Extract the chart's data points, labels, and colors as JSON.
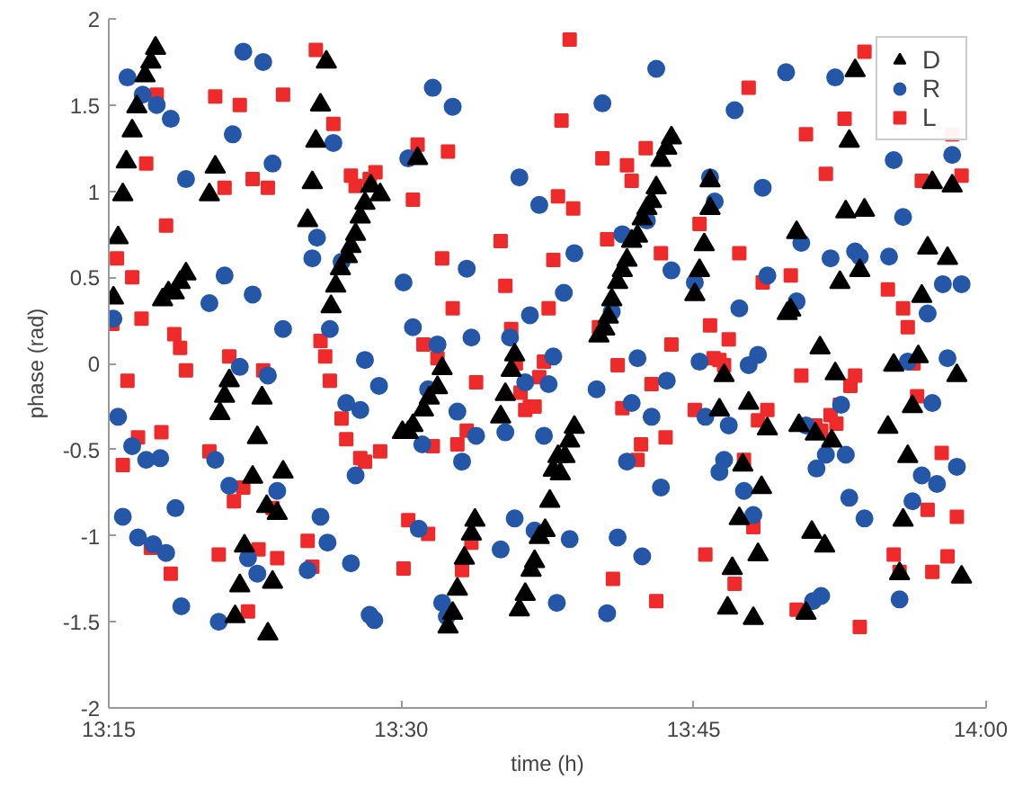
{
  "chart_data": {
    "type": "scatter",
    "xlabel": "time (h)",
    "ylabel": "phase (rad)",
    "xlim": [
      13.25,
      14.0
    ],
    "ylim": [
      -2,
      2
    ],
    "xticks": [
      {
        "value": 13.25,
        "label": "13:15"
      },
      {
        "value": 13.5,
        "label": "13:30"
      },
      {
        "value": 13.75,
        "label": "13:45"
      },
      {
        "value": 14.0,
        "label": "14:00"
      }
    ],
    "yticks": [
      -2,
      -1.5,
      -1,
      -0.5,
      0,
      0.5,
      1,
      1.5,
      2
    ],
    "grid": false,
    "legend": "top right",
    "series": [
      {
        "name": "D",
        "color": "#000000",
        "marker": "triangle",
        "x": [
          13.254,
          13.258,
          13.262,
          13.265,
          13.27,
          13.274,
          13.281,
          13.286,
          13.29,
          13.296,
          13.301,
          13.306,
          13.311,
          13.316,
          13.336,
          13.341,
          13.345,
          13.349,
          13.353,
          13.358,
          13.362,
          13.366,
          13.373,
          13.377,
          13.381,
          13.386,
          13.385,
          13.39,
          13.394,
          13.399,
          13.42,
          13.424,
          13.427,
          13.431,
          13.436,
          13.44,
          13.444,
          13.448,
          13.454,
          13.457,
          13.461,
          13.465,
          13.469,
          13.474,
          13.482,
          13.514,
          13.501,
          13.506,
          13.51,
          13.519,
          13.524,
          13.531,
          13.535,
          13.585,
          13.589,
          13.594,
          13.597,
          13.54,
          13.544,
          13.548,
          13.554,
          13.56,
          13.563,
          13.601,
          13.606,
          13.611,
          13.614,
          13.618,
          13.623,
          13.627,
          13.63,
          13.634,
          13.636,
          13.64,
          13.644,
          13.648,
          13.669,
          13.674,
          13.677,
          13.68,
          13.685,
          13.689,
          13.693,
          13.697,
          13.702,
          13.706,
          13.71,
          13.714,
          13.718,
          13.722,
          13.727,
          13.731,
          13.751,
          13.755,
          13.759,
          13.764,
          13.764,
          13.772,
          13.776,
          13.797,
          13.813,
          13.792,
          13.808,
          13.789,
          13.805,
          13.783,
          13.779,
          13.801,
          13.83,
          13.833,
          13.838,
          13.84,
          13.846,
          13.851,
          13.854,
          13.858,
          13.862,
          13.868,
          13.871,
          13.875,
          13.88,
          13.883,
          13.888,
          13.892,
          13.896,
          13.916,
          13.921,
          13.926,
          13.929,
          13.933,
          13.937,
          13.942,
          13.945,
          13.95,
          13.954,
          13.967,
          13.971,
          13.975,
          13.979
        ],
        "values": [
          0.38,
          0.73,
          0.98,
          1.17,
          1.35,
          1.49,
          1.67,
          1.75,
          1.83,
          0.37,
          0.41,
          0.41,
          0.47,
          0.52,
          0.98,
          1.14,
          -0.29,
          -0.19,
          -0.1,
          -1.47,
          -1.29,
          -1.06,
          -0.66,
          -0.43,
          -0.2,
          -1.57,
          -0.83,
          -1.27,
          -0.87,
          -0.63,
          0.83,
          1.05,
          1.29,
          1.5,
          1.75,
          0.33,
          0.45,
          0.55,
          0.62,
          0.68,
          0.75,
          0.85,
          0.93,
          1.03,
          0.98,
          1.19,
          -0.4,
          -0.4,
          -0.36,
          -0.27,
          -0.2,
          -0.14,
          -0.03,
          -0.31,
          -0.18,
          -0.04,
          0.05,
          -1.53,
          -1.45,
          -1.31,
          -1.13,
          -0.99,
          -0.91,
          -1.43,
          -1.34,
          -1.2,
          -1.15,
          -1.01,
          -0.97,
          -0.8,
          -0.62,
          -0.54,
          -0.64,
          -0.54,
          -0.45,
          -0.37,
          0.16,
          0.2,
          0.27,
          0.37,
          0.47,
          0.54,
          0.6,
          0.71,
          0.74,
          0.84,
          0.9,
          0.94,
          1.02,
          1.18,
          1.25,
          1.31,
          0.4,
          0.54,
          0.69,
          0.9,
          1.06,
          -0.27,
          -0.07,
          -0.23,
          -0.38,
          -0.59,
          -0.72,
          -0.9,
          -1.11,
          -1.19,
          -1.42,
          -1.48,
          0.29,
          0.31,
          0.76,
          -0.36,
          -1.45,
          -0.98,
          -0.41,
          0.09,
          -1.06,
          -0.45,
          -0.06,
          0.47,
          0.88,
          1.29,
          1.7,
          0.54,
          0.89,
          -0.37,
          -0.01,
          -1.22,
          -0.91,
          -0.54,
          -0.25,
          0.04,
          0.39,
          0.67,
          1.05,
          0.61,
          1.03,
          -0.07,
          -1.24
        ]
      },
      {
        "name": "R",
        "color": "#2457a8",
        "marker": "circle",
        "x": [
          13.254,
          13.258,
          13.262,
          13.266,
          13.27,
          13.275,
          13.279,
          13.282,
          13.288,
          13.291,
          13.294,
          13.299,
          13.303,
          13.307,
          13.312,
          13.316,
          13.336,
          13.341,
          13.344,
          13.349,
          13.353,
          13.356,
          13.362,
          13.365,
          13.369,
          13.373,
          13.377,
          13.382,
          13.386,
          13.39,
          13.394,
          13.399,
          13.42,
          13.424,
          13.428,
          13.431,
          13.437,
          13.439,
          13.442,
          13.449,
          13.453,
          13.457,
          13.461,
          13.465,
          13.469,
          13.473,
          13.477,
          13.481,
          13.502,
          13.506,
          13.51,
          13.515,
          13.518,
          13.523,
          13.527,
          13.531,
          13.535,
          13.539,
          13.544,
          13.548,
          13.552,
          13.556,
          13.56,
          13.564,
          13.585,
          13.589,
          13.593,
          13.597,
          13.601,
          13.606,
          13.61,
          13.614,
          13.618,
          13.622,
          13.626,
          13.63,
          13.633,
          13.639,
          13.644,
          13.648,
          13.667,
          13.672,
          13.676,
          13.68,
          13.685,
          13.689,
          13.693,
          13.697,
          13.702,
          13.706,
          13.71,
          13.714,
          13.718,
          13.722,
          13.727,
          13.731,
          13.751,
          13.755,
          13.76,
          13.764,
          13.768,
          13.772,
          13.776,
          13.78,
          13.785,
          13.789,
          13.793,
          13.797,
          13.801,
          13.805,
          13.809,
          13.813,
          13.829,
          13.838,
          13.842,
          13.846,
          13.852,
          13.855,
          13.859,
          13.863,
          13.867,
          13.871,
          13.876,
          13.88,
          13.883,
          13.888,
          13.892,
          13.896,
          13.917,
          13.921,
          13.926,
          13.929,
          13.933,
          13.937,
          13.945,
          13.95,
          13.954,
          13.958,
          13.963,
          13.967,
          13.971,
          13.975,
          13.979
        ],
        "values": [
          0.26,
          -0.31,
          -0.89,
          1.66,
          -0.48,
          -1.01,
          1.56,
          -0.56,
          -1.05,
          1.5,
          -0.55,
          -1.1,
          1.42,
          -0.84,
          -1.41,
          1.07,
          0.35,
          -0.56,
          -1.5,
          0.51,
          -0.71,
          1.33,
          -0.02,
          1.81,
          -1.13,
          0.4,
          -1.22,
          1.75,
          -0.07,
          1.16,
          -0.74,
          0.2,
          -1.2,
          0.61,
          0.73,
          -0.89,
          -1.04,
          0.2,
          1.28,
          0.59,
          -0.23,
          -1.16,
          -0.65,
          -0.27,
          0.02,
          -1.46,
          -1.49,
          -0.13,
          0.47,
          1.19,
          0.21,
          -0.96,
          -0.47,
          -0.15,
          1.6,
          0.11,
          -1.39,
          -1.47,
          1.49,
          -0.28,
          -0.57,
          0.55,
          0.15,
          -0.42,
          -1.08,
          -0.4,
          0.15,
          -0.9,
          1.08,
          -0.11,
          0.28,
          -0.97,
          0.92,
          -0.42,
          -0.12,
          0.04,
          -1.39,
          0.41,
          -1.02,
          0.64,
          -0.15,
          1.51,
          -1.45,
          0.3,
          -1.01,
          0.75,
          -0.57,
          -0.23,
          0.03,
          -1.12,
          0.83,
          -0.31,
          1.71,
          -0.72,
          -0.1,
          0.54,
          0.47,
          0.01,
          -0.31,
          1.08,
          0.94,
          -0.63,
          -0.56,
          -0.36,
          1.47,
          0.32,
          -0.74,
          -0.01,
          -0.88,
          0.05,
          1.02,
          0.51,
          1.69,
          0.36,
          0.7,
          -0.36,
          -1.38,
          -0.61,
          -1.35,
          -0.53,
          0.61,
          1.66,
          -0.24,
          -0.53,
          -0.78,
          0.65,
          0.62,
          -0.9,
          0.62,
          1.18,
          -1.37,
          0.85,
          0.01,
          -0.8,
          -0.65,
          0.29,
          -0.23,
          -0.7,
          0.46,
          0.03,
          1.21,
          -0.6,
          0.46
        ]
      },
      {
        "name": "L",
        "color": "#ee2a2a",
        "marker": "square",
        "x": [
          13.253,
          13.257,
          13.262,
          13.266,
          13.27,
          13.275,
          13.278,
          13.282,
          13.286,
          13.291,
          13.295,
          13.299,
          13.303,
          13.306,
          13.311,
          13.316,
          13.336,
          13.341,
          13.344,
          13.349,
          13.353,
          13.357,
          13.362,
          13.365,
          13.369,
          13.373,
          13.378,
          13.382,
          13.386,
          13.39,
          13.394,
          13.399,
          13.42,
          13.424,
          13.427,
          13.431,
          13.435,
          13.439,
          13.442,
          13.449,
          13.453,
          13.457,
          13.461,
          13.465,
          13.469,
          13.473,
          13.478,
          13.482,
          13.502,
          13.506,
          13.51,
          13.514,
          13.519,
          13.523,
          13.527,
          13.531,
          13.535,
          13.54,
          13.544,
          13.548,
          13.552,
          13.556,
          13.56,
          13.564,
          13.585,
          13.589,
          13.594,
          13.598,
          13.602,
          13.606,
          13.61,
          13.614,
          13.618,
          13.622,
          13.626,
          13.63,
          13.634,
          13.637,
          13.644,
          13.647,
          13.669,
          13.672,
          13.676,
          13.681,
          13.685,
          13.689,
          13.693,
          13.697,
          13.702,
          13.705,
          13.709,
          13.714,
          13.718,
          13.722,
          13.726,
          13.731,
          13.751,
          13.755,
          13.76,
          13.764,
          13.767,
          13.772,
          13.776,
          13.78,
          13.785,
          13.789,
          13.793,
          13.797,
          13.801,
          13.805,
          13.809,
          13.813,
          13.833,
          13.838,
          13.842,
          13.846,
          13.851,
          13.854,
          13.859,
          13.863,
          13.867,
          13.872,
          13.875,
          13.879,
          13.884,
          13.888,
          13.892,
          13.896,
          13.916,
          13.921,
          13.926,
          13.929,
          13.933,
          13.938,
          13.941,
          13.945,
          13.95,
          13.954,
          13.962,
          13.967,
          13.971,
          13.975,
          13.979
        ],
        "values": [
          0.23,
          0.61,
          -0.59,
          -0.1,
          0.5,
          -0.43,
          0.26,
          1.16,
          -1.07,
          1.56,
          -0.4,
          0.8,
          -1.22,
          0.17,
          0.09,
          -0.04,
          -0.51,
          1.55,
          -1.11,
          1.02,
          0.04,
          -0.8,
          1.5,
          -0.72,
          -1.44,
          1.07,
          -1.08,
          -0.04,
          1.02,
          -0.84,
          -1.13,
          1.56,
          -1.03,
          -1.18,
          1.82,
          0.13,
          0.04,
          -0.1,
          1.39,
          -0.32,
          -0.44,
          1.09,
          1.03,
          -0.55,
          -0.57,
          1.07,
          1.11,
          -0.51,
          -1.19,
          -0.91,
          0.95,
          1.27,
          0.11,
          -0.99,
          -0.48,
          0.03,
          0.61,
          1.23,
          0.32,
          -0.47,
          -1.2,
          -0.39,
          -1.04,
          -0.11,
          0.71,
          0.45,
          0.2,
          0.0,
          -0.17,
          -0.27,
          -0.25,
          -0.25,
          -0.08,
          0.01,
          0.32,
          0.6,
          0.97,
          1.41,
          1.88,
          0.9,
          0.21,
          1.19,
          0.72,
          -1.25,
          -0.01,
          -0.26,
          1.15,
          1.06,
          -0.56,
          -0.47,
          1.25,
          -0.12,
          -1.38,
          0.64,
          -0.43,
          0.11,
          -0.27,
          0.81,
          -1.11,
          0.22,
          0.03,
          0.02,
          -0.01,
          0.14,
          -1.28,
          0.64,
          -0.56,
          1.6,
          -0.95,
          -0.33,
          0.47,
          -0.27,
          0.51,
          -1.43,
          -0.07,
          1.33,
          null,
          -0.36,
          -0.39,
          1.1,
          -0.3,
          -0.35,
          -0.24,
          1.42,
          -0.13,
          -0.07,
          -1.53,
          1.81,
          0.43,
          -1.11,
          -1.21,
          0.32,
          0.21,
          0.0,
          -0.19,
          1.06,
          -0.85,
          -1.21,
          -0.52,
          -1.12,
          1.33,
          -0.89,
          1.09
        ]
      }
    ]
  }
}
